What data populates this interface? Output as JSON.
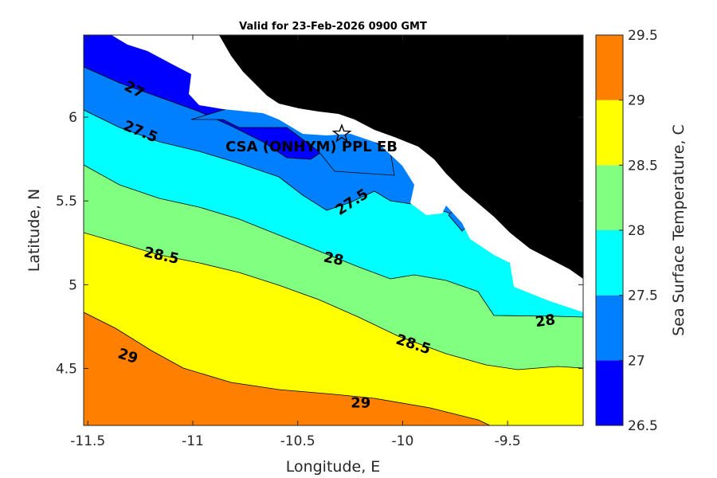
{
  "chart_data": {
    "type": "contour",
    "title": "Valid for 23-Feb-2026 0900 GMT",
    "xlabel": "Longitude, E",
    "ylabel": "Latitude, N",
    "xlim": [
      -11.52,
      -9.14
    ],
    "ylim": [
      4.16,
      6.49
    ],
    "x_ticks": [
      -11.5,
      -11,
      -10.5,
      -10,
      -9.5
    ],
    "x_tick_labels": [
      "-11.5",
      "-11",
      "-10.5",
      "-10",
      "-9.5"
    ],
    "y_ticks": [
      4.5,
      5,
      5.5,
      6
    ],
    "y_tick_labels": [
      "4.5",
      "5",
      "5.5",
      "6"
    ],
    "colorbar": {
      "label": "Sea Surface Temperature, C",
      "levels": [
        26.5,
        27,
        27.5,
        28,
        28.5,
        29,
        29.5
      ],
      "tick_labels": [
        "26.5",
        "27",
        "27.5",
        "28",
        "28.5",
        "29",
        "29.5"
      ],
      "colors": [
        "#0000ff",
        "#0080ff",
        "#00ffff",
        "#80ff80",
        "#ffff00",
        "#ff8000"
      ]
    },
    "contour_labels": [
      {
        "text": "27",
        "lon": -11.28,
        "lat": 6.16,
        "angle": 28
      },
      {
        "text": "27.5",
        "lon": -11.25,
        "lat": 5.91,
        "angle": 22
      },
      {
        "text": "27.5",
        "lon": -10.24,
        "lat": 5.49,
        "angle": -33
      },
      {
        "text": "28",
        "lon": -10.33,
        "lat": 5.15,
        "angle": 12
      },
      {
        "text": "28",
        "lon": -9.32,
        "lat": 4.78,
        "angle": -8
      },
      {
        "text": "28.5",
        "lon": -11.15,
        "lat": 5.17,
        "angle": 12
      },
      {
        "text": "28.5",
        "lon": -9.95,
        "lat": 4.64,
        "angle": 18
      },
      {
        "text": "29",
        "lon": -11.31,
        "lat": 4.57,
        "angle": 18
      },
      {
        "text": "29",
        "lon": -10.2,
        "lat": 4.29,
        "angle": 0
      }
    ],
    "site": {
      "label": "CSA (ONHYM) PPL EB",
      "lon": -10.29,
      "lat": 5.9,
      "marker": "star"
    }
  }
}
